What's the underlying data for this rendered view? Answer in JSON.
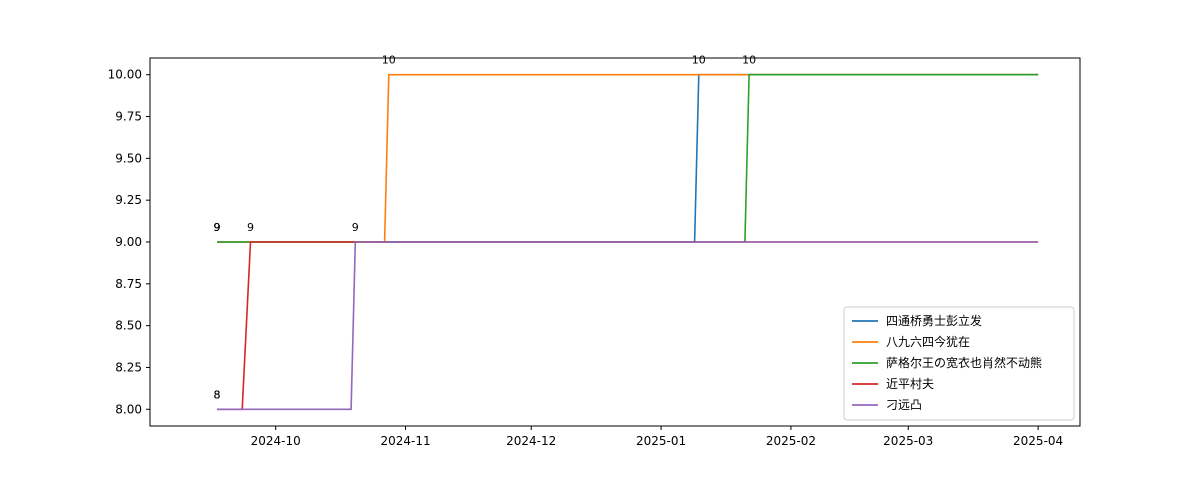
{
  "chart_data": {
    "type": "line",
    "title": "",
    "xlabel": "",
    "ylabel": "",
    "xlim": [
      "2024-09-01",
      "2025-04-11"
    ],
    "ylim": [
      7.9,
      10.1
    ],
    "x_ticks": [
      "2024-10",
      "2024-11",
      "2024-12",
      "2025-01",
      "2025-02",
      "2025-03",
      "2025-04"
    ],
    "y_ticks": [
      "8.00",
      "8.25",
      "8.50",
      "8.75",
      "9.00",
      "9.25",
      "9.50",
      "9.75",
      "10.00"
    ],
    "grid": false,
    "legend_position": "lower-right",
    "series": [
      {
        "name": "四通桥勇士彭立发",
        "color": "#1f77b4",
        "points": [
          [
            "2024-09-17",
            9
          ],
          [
            "2025-01-09",
            9
          ],
          [
            "2025-01-10",
            10
          ],
          [
            "2025-04-01",
            10
          ]
        ],
        "labels": [
          [
            "2024-09-17",
            9,
            "9"
          ],
          [
            "2025-01-10",
            10,
            "10"
          ]
        ]
      },
      {
        "name": "八九六四今犹在",
        "color": "#ff7f0e",
        "points": [
          [
            "2024-09-17",
            9
          ],
          [
            "2024-10-27",
            9
          ],
          [
            "2024-10-28",
            10
          ],
          [
            "2025-04-01",
            10
          ]
        ],
        "labels": [
          [
            "2024-09-17",
            9,
            "9"
          ],
          [
            "2024-10-28",
            10,
            "10"
          ]
        ]
      },
      {
        "name": "萨格尔王の宽衣也肖然不动熊",
        "color": "#2ca02c",
        "points": [
          [
            "2024-09-17",
            9
          ],
          [
            "2025-01-21",
            9
          ],
          [
            "2025-01-22",
            10
          ],
          [
            "2025-04-01",
            10
          ]
        ],
        "labels": [
          [
            "2024-09-17",
            9,
            "9"
          ],
          [
            "2025-01-22",
            10,
            "10"
          ]
        ]
      },
      {
        "name": "近平村夫",
        "color": "#d62728",
        "points": [
          [
            "2024-09-17",
            8
          ],
          [
            "2024-09-23",
            8
          ],
          [
            "2024-09-25",
            9
          ],
          [
            "2025-04-01",
            9
          ]
        ],
        "labels": [
          [
            "2024-09-17",
            8,
            "8"
          ],
          [
            "2024-09-25",
            9,
            "9"
          ]
        ]
      },
      {
        "name": "刁远凸",
        "color": "#9467bd",
        "points": [
          [
            "2024-09-17",
            8
          ],
          [
            "2024-10-19",
            8
          ],
          [
            "2024-10-20",
            9
          ],
          [
            "2025-04-01",
            9
          ]
        ],
        "labels": [
          [
            "2024-09-17",
            8,
            "8"
          ],
          [
            "2024-10-20",
            9,
            "9"
          ]
        ]
      }
    ]
  }
}
